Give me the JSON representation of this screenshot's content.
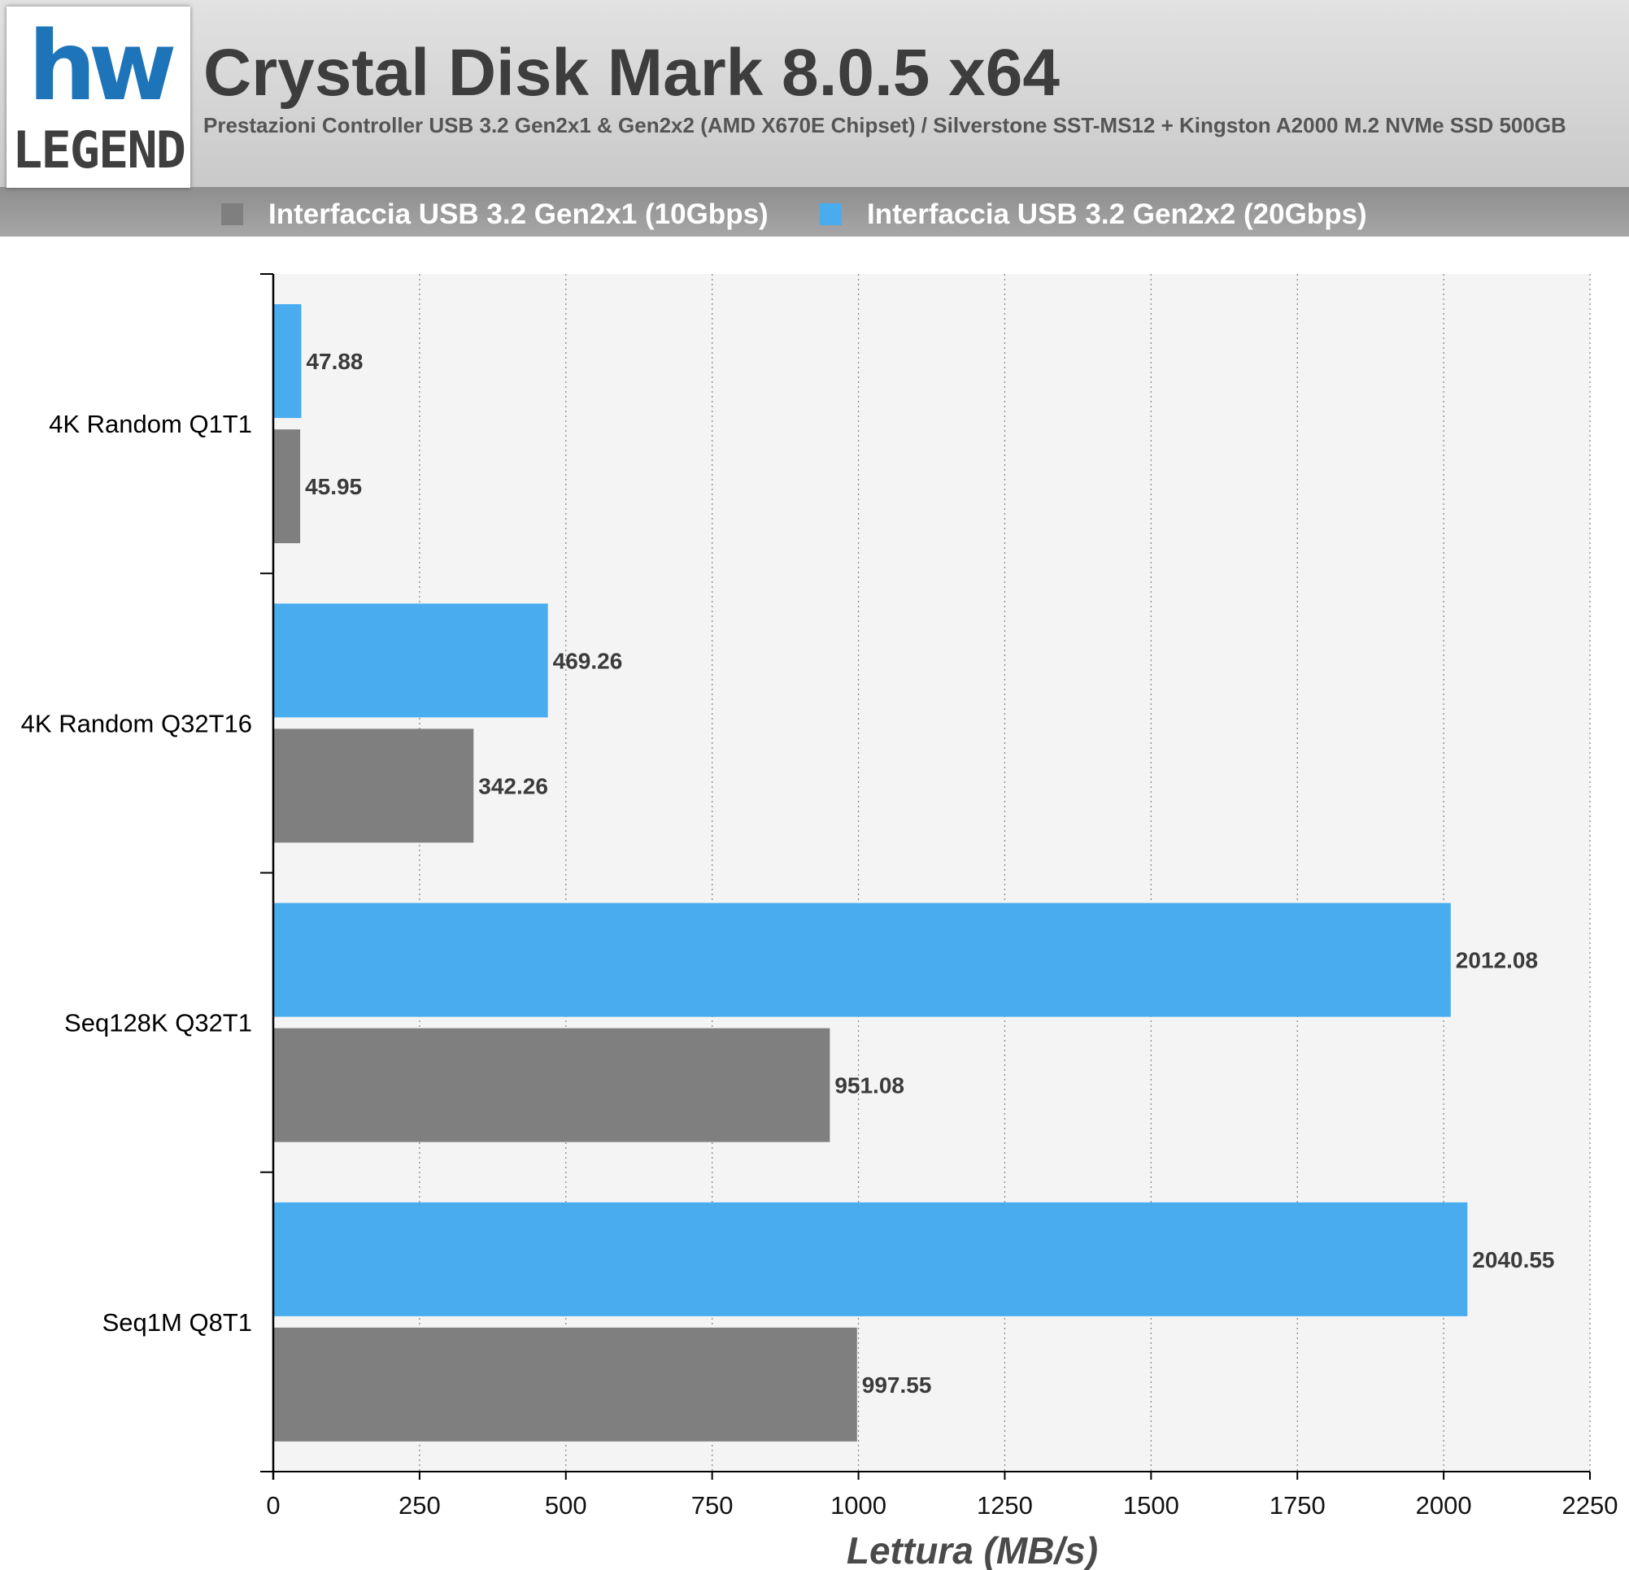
{
  "header": {
    "title": "Crystal Disk Mark 8.0.5 x64",
    "subtitle": "Prestazioni Controller USB 3.2 Gen2x1 & Gen2x2 (AMD X670E Chipset) / Silverstone SST-MS12 + Kingston A2000 M.2 NVMe SSD 500GB",
    "logo_top": "hw",
    "logo_bottom": "LEGEND"
  },
  "colors": {
    "gen2x1": "#7f7f7f",
    "gen2x2": "#48acef",
    "logo_blue": "#1d74b8"
  },
  "chart_data": {
    "type": "bar",
    "orientation": "horizontal",
    "categories": [
      "4K Random Q1T1",
      "4K Random Q32T16",
      "Seq128K Q32T1",
      "Seq1M Q8T1"
    ],
    "series": [
      {
        "name": "Interfaccia USB 3.2 Gen2x1 (10Gbps)",
        "values": [
          45.95,
          342.26,
          951.08,
          997.55
        ]
      },
      {
        "name": "Interfaccia USB 3.2 Gen2x2 (20Gbps)",
        "values": [
          47.88,
          469.26,
          2012.08,
          2040.55
        ]
      }
    ],
    "xlabel": "Lettura (MB/s)",
    "ylabel": "",
    "xlim": [
      0,
      2250
    ],
    "xticks": [
      0,
      250,
      500,
      750,
      1000,
      1250,
      1500,
      1750,
      2000,
      2250
    ],
    "grid": "vertical dotted",
    "legend_position": "top"
  }
}
